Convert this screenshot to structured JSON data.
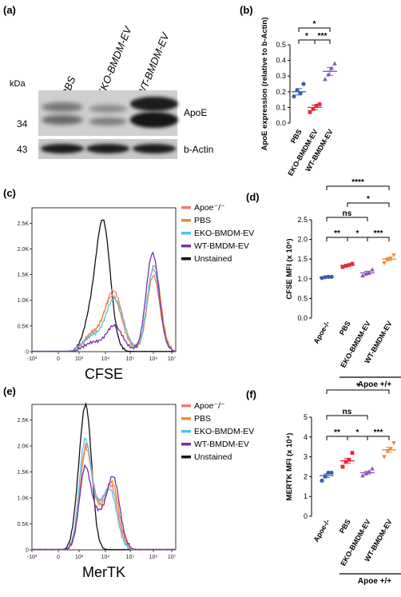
{
  "panels": {
    "a": {
      "label": "(a)",
      "kda": "kDa",
      "lanes": [
        "PBS",
        "EKO-BMDM-EV",
        "WT-BMDM-EV"
      ],
      "markers": [
        "34",
        "43"
      ],
      "bands": [
        "ApoE",
        "b-Actin"
      ]
    },
    "b": {
      "label": "(b)"
    },
    "c": {
      "label": "(c)"
    },
    "d": {
      "label": "(d)"
    },
    "e": {
      "label": "(e)"
    },
    "f": {
      "label": "(f)"
    }
  },
  "colors": {
    "blue": "#3a5fb0",
    "red": "#e8283a",
    "purple": "#8d57b8",
    "orange": "#f08a32",
    "salmon": "#f07a7a",
    "cyan": "#52c2e8",
    "violet": "#7a2fa5",
    "black": "#111111"
  },
  "chart_data": [
    {
      "id": "b",
      "type": "scatter",
      "ylabel": "ApoE expression (relative to b-Actin)",
      "categories": [
        "PBS",
        "EKO-BMDM-EV",
        "WT-BMDM-EV"
      ],
      "yticks": [
        "0.0",
        "0.1",
        "0.2",
        "0.3",
        "0.4",
        "0.5"
      ],
      "ylim": [
        0,
        0.5
      ],
      "points": [
        [
          0.17,
          0.21,
          0.19,
          0.25
        ],
        [
          0.07,
          0.09,
          0.11,
          0.12
        ],
        [
          0.28,
          0.31,
          0.35,
          0.38
        ]
      ],
      "means": [
        0.2,
        0.1,
        0.33
      ],
      "sem": [
        0.02,
        0.015,
        0.025
      ],
      "brackets": [
        {
          "from": 0,
          "to": 2,
          "label": "*"
        },
        {
          "from": 0,
          "to": 1,
          "label": "*"
        },
        {
          "from": 1,
          "to": 2,
          "label": "***"
        }
      ]
    },
    {
      "id": "c",
      "type": "line",
      "xlabel": "CFSE",
      "yticks": [
        "0",
        "0.5K",
        "1.0K",
        "1.5K",
        "2.0K",
        "2.5K"
      ],
      "ylim": [
        0,
        2800
      ],
      "xticks": [
        "-10³",
        "0",
        "10³",
        "10⁴",
        "10⁵",
        "10⁶",
        "10⁷"
      ],
      "legend": [
        "Apoe⁻/⁻",
        "PBS",
        "EKO-BMDM-EV",
        "WT-BMDM-EV",
        "Unstained"
      ]
    },
    {
      "id": "d",
      "type": "scatter",
      "ylabel": "CFSE MFI (x 10⁶)",
      "categories": [
        "Apoe-/-",
        "PBS",
        "EKO-BMDM-EV",
        "WT-BMDM-EV"
      ],
      "group_label": "Apoe +/+",
      "yticks": [
        "0.0",
        "0.5",
        "1.0",
        "1.5",
        "2.0",
        "2.5"
      ],
      "ylim": [
        0,
        2.5
      ],
      "points": [
        [
          1.02,
          1.04,
          1.05,
          1.05
        ],
        [
          1.3,
          1.33,
          1.35,
          1.38
        ],
        [
          1.08,
          1.12,
          1.15,
          1.23
        ],
        [
          1.4,
          1.48,
          1.52,
          1.6
        ]
      ],
      "means": [
        1.04,
        1.34,
        1.15,
        1.5
      ],
      "sem": [
        0.01,
        0.02,
        0.04,
        0.04
      ],
      "brackets": [
        {
          "from": 0,
          "to": 3,
          "label": "****"
        },
        {
          "from": 1,
          "to": 3,
          "label": "*"
        },
        {
          "from": 0,
          "to": 2,
          "label": "ns"
        },
        {
          "from": 0,
          "to": 1,
          "label": "**"
        },
        {
          "from": 1,
          "to": 2,
          "label": "*"
        },
        {
          "from": 2,
          "to": 3,
          "label": "***"
        }
      ]
    },
    {
      "id": "e",
      "type": "line",
      "xlabel": "MerTK",
      "yticks": [
        "0",
        "0.5K",
        "1.0K",
        "1.5K",
        "2.0K",
        "2.5K"
      ],
      "ylim": [
        0,
        2800
      ],
      "xticks": [
        "-10³",
        "0",
        "10³",
        "10⁴",
        "10⁵",
        "10⁶",
        "10⁷"
      ],
      "legend": [
        "Apoe⁻/⁻",
        "PBS",
        "EKO-BMDM-EV",
        "WT-BMDM-EV",
        "Unstained"
      ]
    },
    {
      "id": "f",
      "type": "scatter",
      "ylabel": "MERTK MFI (x 10⁴)",
      "categories": [
        "Apoe-/-",
        "PBS",
        "EKO-BMDM-EV",
        "WT-BMDM-EV"
      ],
      "group_label": "Apoe +/+",
      "yticks": [
        "0",
        "1",
        "2",
        "3",
        "4",
        "5"
      ],
      "ylim": [
        0,
        5
      ],
      "points": [
        [
          1.8,
          2.0,
          2.2,
          2.2
        ],
        [
          2.5,
          2.75,
          2.85,
          3.2
        ],
        [
          2.05,
          2.15,
          2.25,
          2.4
        ],
        [
          3.0,
          3.3,
          3.4,
          3.7
        ]
      ],
      "means": [
        2.05,
        2.8,
        2.2,
        3.35
      ],
      "sem": [
        0.09,
        0.13,
        0.07,
        0.13
      ],
      "brackets": [
        {
          "from": 0,
          "to": 3,
          "label": "*"
        },
        {
          "from": 0,
          "to": 2,
          "label": "ns"
        },
        {
          "from": 0,
          "to": 1,
          "label": "**"
        },
        {
          "from": 1,
          "to": 2,
          "label": "*"
        },
        {
          "from": 2,
          "to": 3,
          "label": "***"
        }
      ]
    }
  ]
}
